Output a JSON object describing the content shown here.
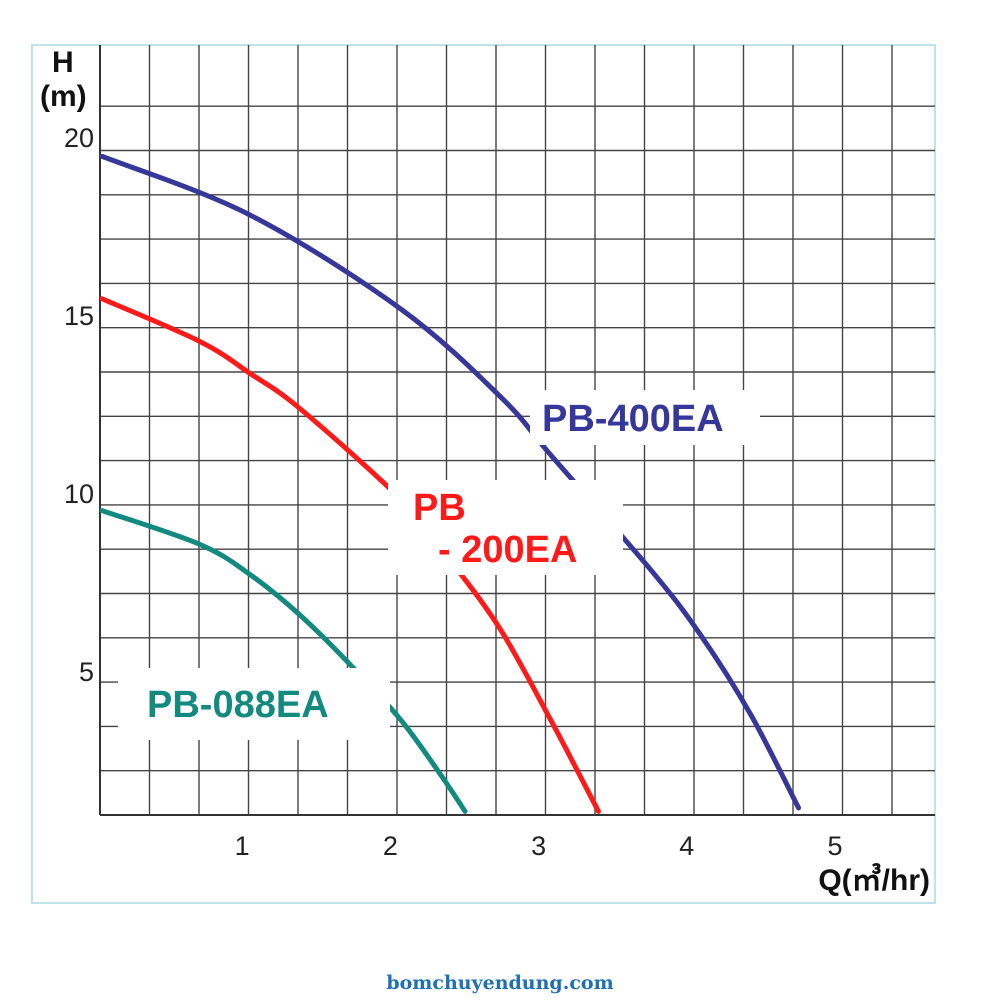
{
  "chart_data": {
    "type": "line",
    "title": "",
    "ylabel_line1": "H",
    "ylabel_line2": "(m)",
    "xlabel": "Q(㎥/hr)",
    "xlim": [
      0,
      5.63
    ],
    "ylim": [
      0.9,
      22.5
    ],
    "grid": true,
    "x_ticks": [
      1,
      2,
      3,
      4,
      5
    ],
    "y_ticks": [
      5,
      10,
      15,
      20
    ],
    "series": [
      {
        "name": "PB-400EA",
        "color": "#35379a",
        "x": [
          0,
          1,
          2.02,
          2.7,
          3.03,
          3.7,
          4.04,
          4.38,
          4.7
        ],
        "y": [
          19.4,
          17.75,
          15.1,
          12.6,
          11.0,
          7.8,
          5.95,
          3.7,
          1.1
        ]
      },
      {
        "name": "PB - 200EA",
        "label_line1": "PB",
        "label_line2": "- 200EA",
        "color": "#ff1a1a",
        "x": [
          0,
          0.66,
          1,
          1.34,
          2.02,
          2.35,
          2.69,
          3.03,
          3.35
        ],
        "y": [
          15.4,
          14.2,
          13.3,
          12.3,
          9.75,
          8.05,
          6.1,
          3.55,
          1.0
        ]
      },
      {
        "name": "PB-088EA",
        "color": "#138a80",
        "x": [
          0,
          0.66,
          1,
          1.34,
          1.68,
          2.02,
          2.29,
          2.45
        ],
        "y": [
          9.45,
          8.5,
          7.65,
          6.5,
          5.1,
          3.55,
          2.0,
          1.0
        ]
      }
    ]
  },
  "footer": "bomchuyendung.com"
}
